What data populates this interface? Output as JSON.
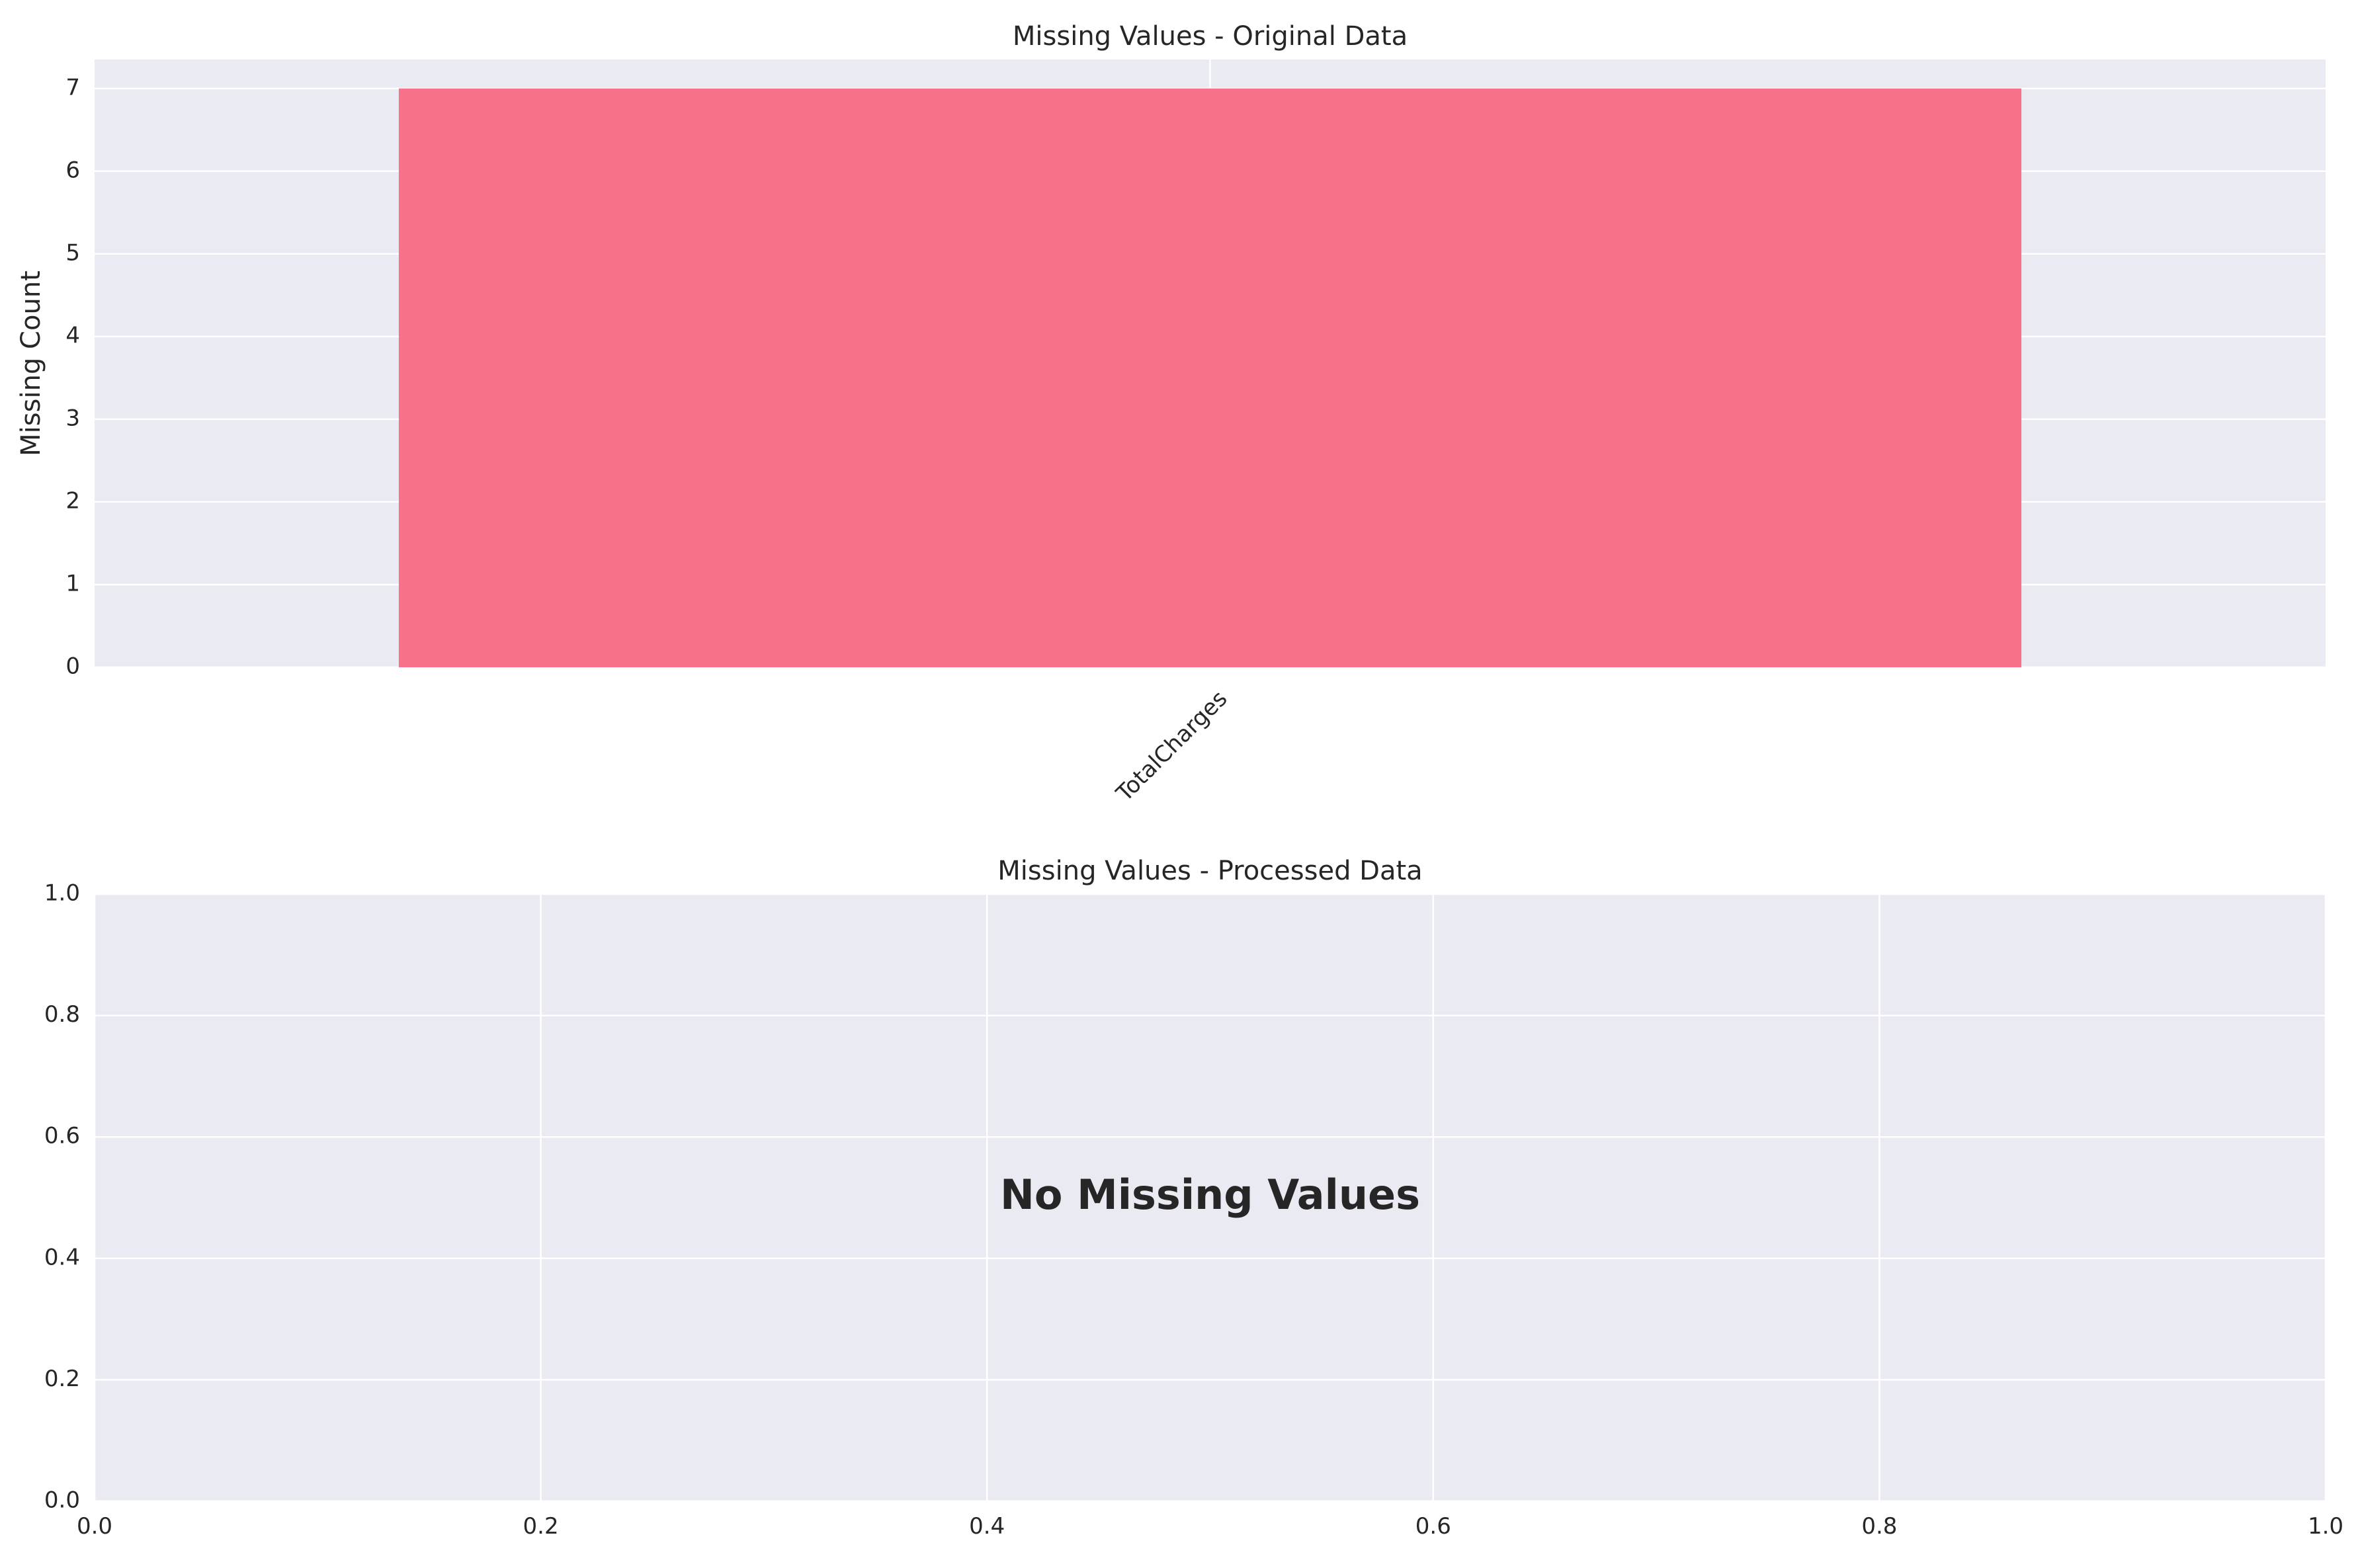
{
  "colors": {
    "axes_bg": "#eaeaf2",
    "grid": "#ffffff",
    "bar": "#f77189",
    "text": "#262626"
  },
  "chart_data": [
    {
      "type": "bar",
      "title": "Missing Values - Original Data",
      "xlabel": "",
      "ylabel": "Missing Count",
      "categories": [
        "TotalCharges"
      ],
      "values": [
        7
      ],
      "ylim": [
        0,
        7.35
      ],
      "yticks": [
        0,
        1,
        2,
        3,
        4,
        5,
        6,
        7
      ],
      "xtick_rotation": 45,
      "grid": true
    },
    {
      "type": "bar",
      "title": "Missing Values - Processed Data",
      "xlabel": "",
      "ylabel": "",
      "categories": [],
      "values": [],
      "xlim": [
        0,
        1
      ],
      "ylim": [
        0,
        1
      ],
      "xticks": [
        0.0,
        0.2,
        0.4,
        0.6,
        0.8,
        1.0
      ],
      "yticks": [
        0.0,
        0.2,
        0.4,
        0.6,
        0.8,
        1.0
      ],
      "annotation": "No Missing Values",
      "grid": true
    }
  ]
}
